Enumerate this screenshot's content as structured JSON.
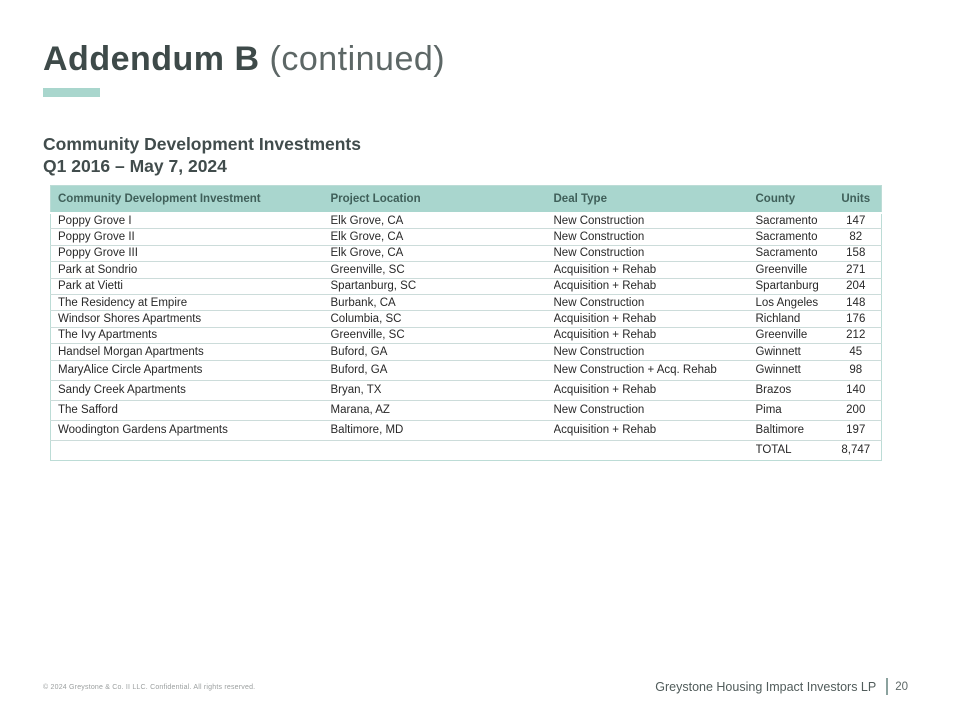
{
  "slide": {
    "title_bold": "Addendum B",
    "title_light": " (continued)",
    "subtitle_line1": "Community Development Investments",
    "subtitle_line2": "Q1 2016 – May 7, 2024"
  },
  "table": {
    "headers": [
      "Community Development Investment",
      "Project Location",
      "Deal Type",
      "County",
      "Units"
    ],
    "rows": [
      [
        "Poppy Grove I",
        "Elk Grove, CA",
        "New Construction",
        "Sacramento",
        "147"
      ],
      [
        "Poppy Grove II",
        "Elk Grove, CA",
        "New Construction",
        "Sacramento",
        "82"
      ],
      [
        "Poppy Grove III",
        "Elk Grove, CA",
        "New Construction",
        "Sacramento",
        "158"
      ],
      [
        "Park at Sondrio",
        "Greenville, SC",
        "Acquisition + Rehab",
        "Greenville",
        "271"
      ],
      [
        "Park at Vietti",
        "Spartanburg, SC",
        "Acquisition + Rehab",
        "Spartanburg",
        "204"
      ],
      [
        "The Residency at Empire",
        "Burbank, CA",
        "New Construction",
        "Los Angeles",
        "148"
      ],
      [
        "Windsor Shores Apartments",
        "Columbia, SC",
        "Acquisition + Rehab",
        "Richland",
        "176"
      ],
      [
        "The Ivy Apartments",
        "Greenville, SC",
        "Acquisition + Rehab",
        "Greenville",
        "212"
      ],
      [
        "Handsel Morgan Apartments",
        "Buford, GA",
        "New Construction",
        "Gwinnett",
        "45"
      ],
      [
        "MaryAlice Circle Apartments",
        "Buford, GA",
        "New Construction + Acq. Rehab",
        "Gwinnett",
        "98"
      ],
      [
        "Sandy Creek Apartments",
        "Bryan, TX",
        "Acquisition + Rehab",
        "Brazos",
        "140"
      ],
      [
        "The Safford",
        "Marana, AZ",
        "New Construction",
        "Pima",
        "200"
      ],
      [
        "Woodington Gardens Apartments",
        "Baltimore, MD",
        "Acquisition + Rehab",
        "Baltimore",
        "197"
      ]
    ],
    "total_label": "TOTAL",
    "total_units": "8,747"
  },
  "footer": {
    "copyright": "© 2024 Greystone & Co. II LLC. Confidential. All rights reserved.",
    "company": "Greystone Housing Impact Investors LP",
    "page_number": "20"
  },
  "colors": {
    "accent_teal": "#a9d6cd",
    "table_header_bg": "#a9d6ce",
    "table_header_text": "#3f5f59",
    "title_dark": "#3e4a49",
    "body_text": "#282828"
  }
}
